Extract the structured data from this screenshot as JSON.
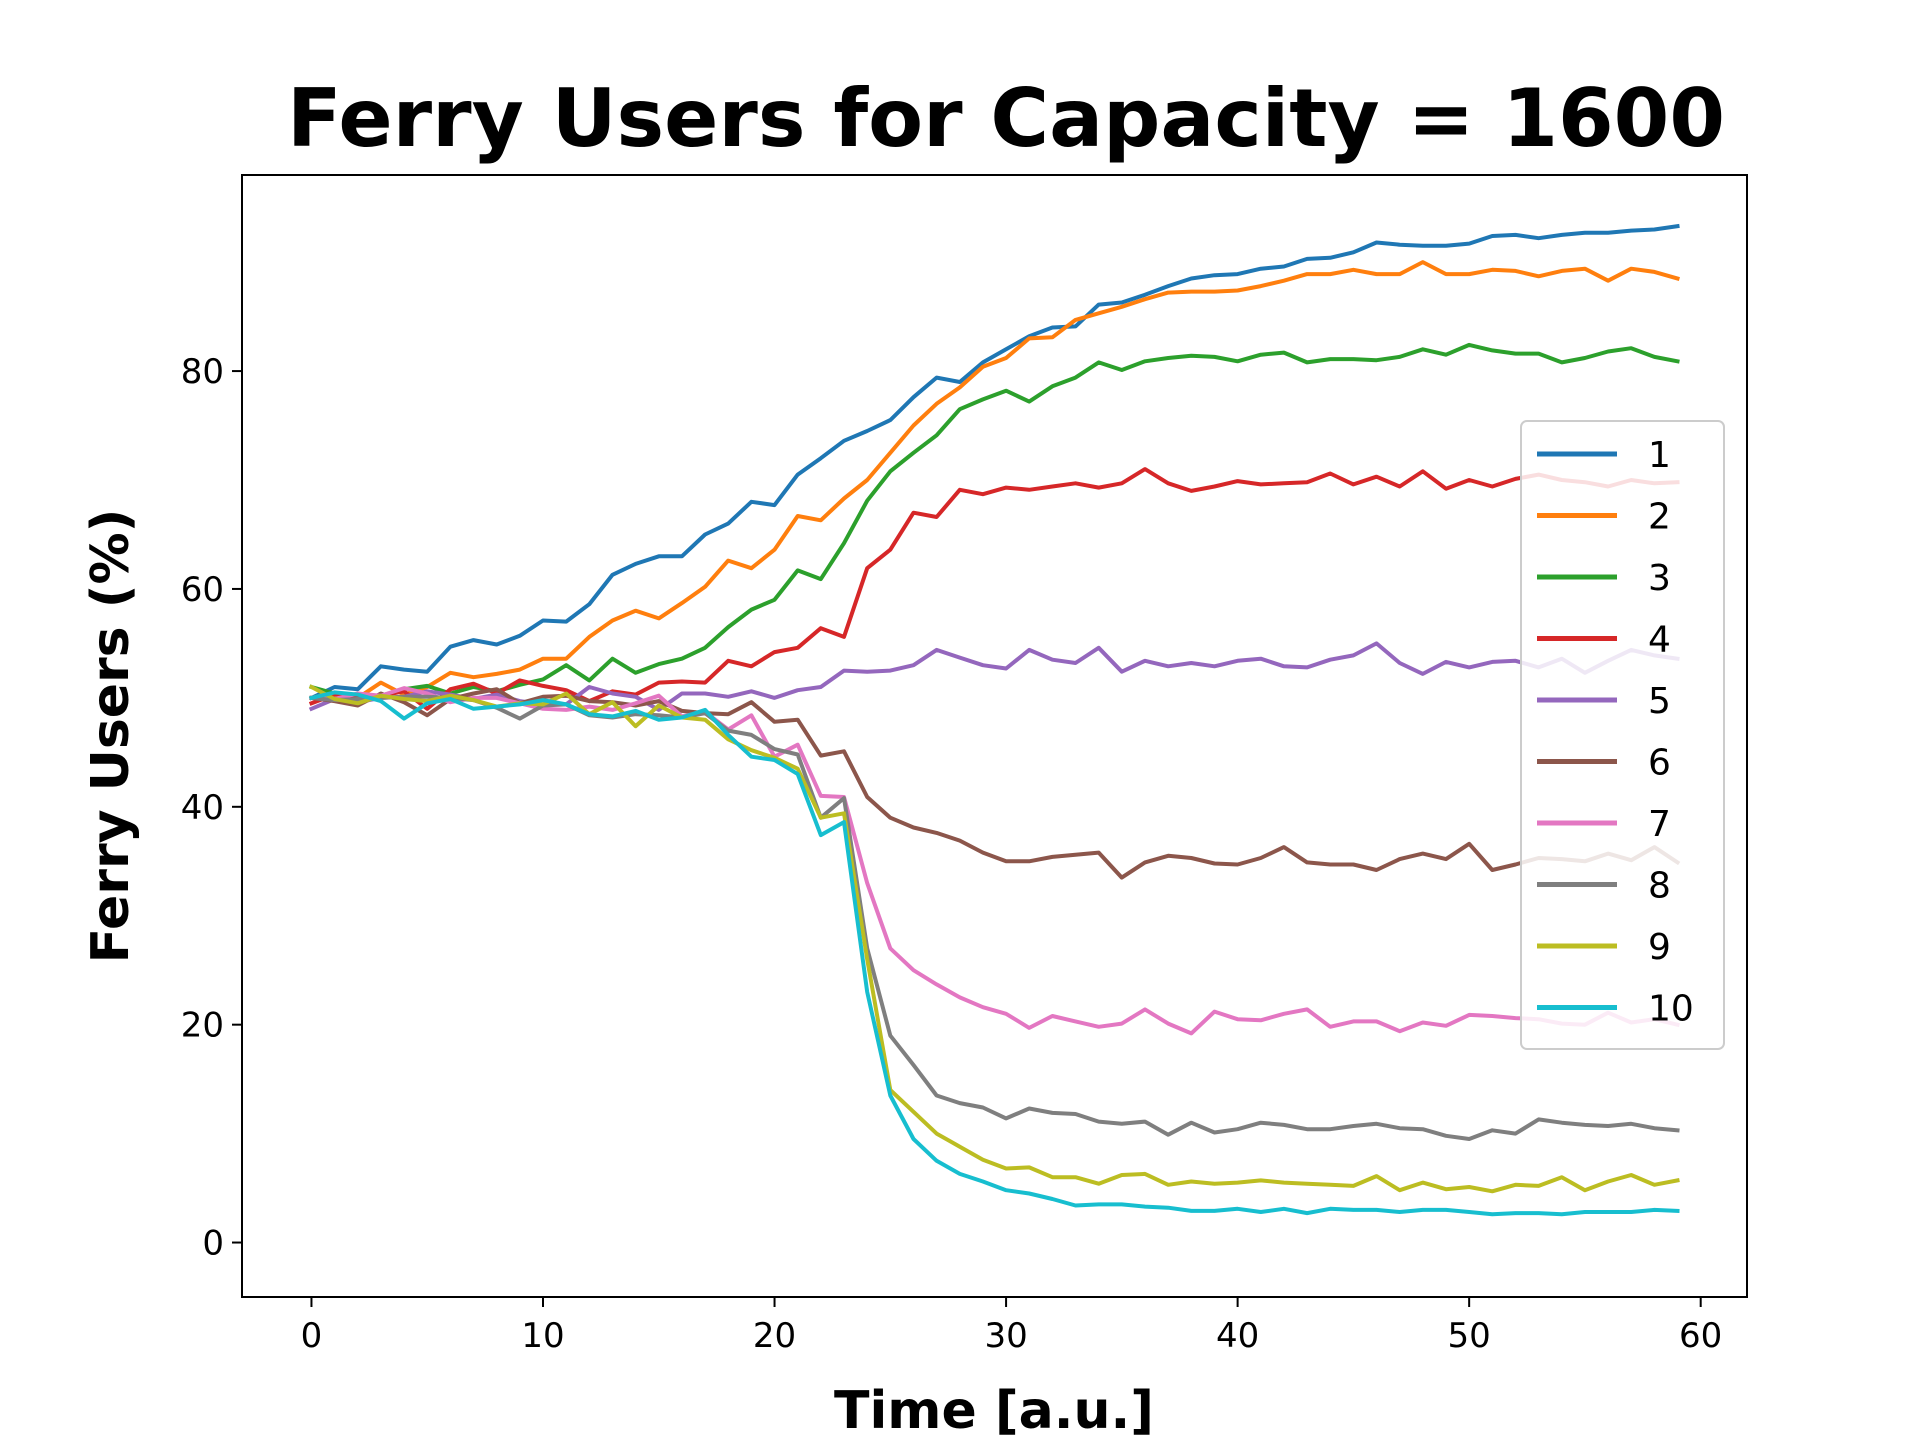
{
  "chart_data": {
    "type": "line",
    "title": "Ferry Users for Capacity = 1600",
    "xlabel": "Time [a.u.]",
    "ylabel": "Ferry Users (%)",
    "xlim": [
      -3,
      62
    ],
    "ylim": [
      -5,
      98
    ],
    "xticks": [
      0,
      10,
      20,
      30,
      40,
      50,
      60
    ],
    "yticks": [
      0,
      20,
      40,
      60,
      80
    ],
    "grid": false,
    "legend_position": "center-right",
    "series_start_x": 0,
    "series_step": 1,
    "series": [
      {
        "name": "1",
        "color": "#1f77b4",
        "values": [
          50.0,
          51.0,
          50.8,
          52.9,
          52.6,
          52.4,
          54.7,
          55.3,
          54.9,
          55.7,
          57.1,
          57.0,
          58.6,
          61.3,
          62.3,
          63.0,
          63.0,
          65.0,
          66.0,
          68.0,
          67.7,
          70.5,
          72.0,
          73.6,
          74.5,
          75.5,
          77.6,
          79.4,
          79.0,
          80.8,
          82.0,
          83.2,
          84.0,
          84.1,
          86.1,
          86.3,
          87.0,
          87.8,
          88.5,
          88.8,
          88.9,
          89.4,
          89.6,
          90.3,
          90.4,
          90.9,
          91.8,
          91.6,
          91.5,
          91.5,
          91.7,
          92.4,
          92.5,
          92.2,
          92.5,
          92.7,
          92.7,
          92.9,
          93.0,
          93.3
        ]
      },
      {
        "name": "2",
        "color": "#ff7f0e",
        "values": [
          50.0,
          50.5,
          50.0,
          51.4,
          50.3,
          51.0,
          52.3,
          51.9,
          52.2,
          52.6,
          53.6,
          53.6,
          55.6,
          57.1,
          58.0,
          57.3,
          58.7,
          60.2,
          62.6,
          61.9,
          63.6,
          66.7,
          66.3,
          68.3,
          70.0,
          72.5,
          75.0,
          77.0,
          78.5,
          80.4,
          81.2,
          83.0,
          83.1,
          84.7,
          85.3,
          85.9,
          86.6,
          87.2,
          87.3,
          87.3,
          87.4,
          87.8,
          88.3,
          88.9,
          88.9,
          89.3,
          88.9,
          88.9,
          90.0,
          88.9,
          88.9,
          89.3,
          89.2,
          88.7,
          89.2,
          89.4,
          88.3,
          89.4,
          89.1,
          88.5
        ]
      },
      {
        "name": "3",
        "color": "#2ca02c",
        "values": [
          51.0,
          50.4,
          50.0,
          50.2,
          50.8,
          51.1,
          50.4,
          51.0,
          50.6,
          51.2,
          51.7,
          53.0,
          51.6,
          53.6,
          52.3,
          53.1,
          53.6,
          54.6,
          56.5,
          58.1,
          59.0,
          61.7,
          60.9,
          64.2,
          68.1,
          70.8,
          72.5,
          74.1,
          76.5,
          77.4,
          78.2,
          77.2,
          78.6,
          79.4,
          80.8,
          80.1,
          80.9,
          81.2,
          81.4,
          81.3,
          80.9,
          81.5,
          81.7,
          80.8,
          81.1,
          81.1,
          81.0,
          81.3,
          82.0,
          81.5,
          82.4,
          81.9,
          81.6,
          81.6,
          80.8,
          81.2,
          81.8,
          82.1,
          81.3,
          80.9
        ]
      },
      {
        "name": "4",
        "color": "#d62728",
        "values": [
          49.5,
          50.3,
          50.0,
          50.2,
          50.6,
          49.0,
          50.8,
          51.3,
          50.4,
          51.6,
          51.1,
          50.7,
          49.7,
          50.6,
          50.3,
          51.4,
          51.5,
          51.4,
          53.4,
          52.9,
          54.2,
          54.6,
          56.4,
          55.6,
          61.9,
          63.6,
          67.0,
          66.6,
          69.1,
          68.7,
          69.3,
          69.1,
          69.4,
          69.7,
          69.3,
          69.7,
          71.0,
          69.7,
          69.0,
          69.4,
          69.9,
          69.6,
          69.7,
          69.8,
          70.6,
          69.6,
          70.3,
          69.4,
          70.8,
          69.2,
          70.0,
          69.4,
          70.1,
          70.5,
          70.0,
          69.8,
          69.4,
          70.0,
          69.7,
          69.8
        ]
      },
      {
        "name": "5",
        "color": "#9467bd",
        "values": [
          49.0,
          49.9,
          49.6,
          50.0,
          50.1,
          50.6,
          50.3,
          49.9,
          50.3,
          49.7,
          49.4,
          49.4,
          51.0,
          50.4,
          50.1,
          48.9,
          50.4,
          50.4,
          50.1,
          50.6,
          50.0,
          50.7,
          51.0,
          52.5,
          52.4,
          52.5,
          53.0,
          54.4,
          53.7,
          53.0,
          52.7,
          54.4,
          53.5,
          53.2,
          54.6,
          52.4,
          53.4,
          52.9,
          53.2,
          52.9,
          53.4,
          53.6,
          52.9,
          52.8,
          53.5,
          53.9,
          55.0,
          53.2,
          52.2,
          53.3,
          52.8,
          53.3,
          53.4,
          52.8,
          53.6,
          52.3,
          53.4,
          54.4,
          53.9,
          53.6
        ]
      },
      {
        "name": "6",
        "color": "#8c564b",
        "values": [
          50.0,
          49.7,
          49.3,
          50.4,
          49.6,
          48.4,
          49.9,
          50.4,
          50.8,
          49.5,
          50.1,
          50.2,
          49.7,
          49.6,
          49.3,
          49.7,
          48.8,
          48.6,
          48.5,
          49.6,
          47.8,
          48.0,
          44.7,
          45.1,
          40.9,
          39.0,
          38.1,
          37.6,
          36.9,
          35.8,
          35.0,
          35.0,
          35.4,
          35.6,
          35.8,
          33.5,
          34.9,
          35.5,
          35.3,
          34.8,
          34.7,
          35.3,
          36.3,
          34.9,
          34.7,
          34.7,
          34.2,
          35.2,
          35.7,
          35.2,
          36.6,
          34.2,
          34.7,
          35.3,
          35.2,
          35.0,
          35.7,
          35.1,
          36.3,
          34.9
        ]
      },
      {
        "name": "7",
        "color": "#e377c2",
        "values": [
          50.0,
          49.9,
          50.4,
          50.2,
          50.9,
          50.4,
          49.6,
          50.0,
          50.0,
          49.5,
          49.0,
          48.9,
          49.2,
          48.9,
          49.5,
          50.2,
          48.3,
          48.7,
          47.1,
          48.4,
          44.6,
          45.7,
          41.0,
          40.9,
          33.0,
          27.0,
          25.0,
          23.7,
          22.5,
          21.6,
          21.0,
          19.7,
          20.8,
          20.3,
          19.8,
          20.1,
          21.4,
          20.1,
          19.2,
          21.2,
          20.5,
          20.4,
          21.0,
          21.4,
          19.8,
          20.3,
          20.3,
          19.4,
          20.2,
          19.9,
          20.9,
          20.8,
          20.6,
          20.5,
          20.1,
          20.0,
          21.1,
          20.2,
          20.5,
          20.0
        ]
      },
      {
        "name": "8",
        "color": "#7f7f7f",
        "values": [
          50.0,
          49.8,
          49.9,
          50.0,
          50.1,
          50.1,
          50.0,
          49.8,
          49.1,
          48.1,
          49.3,
          49.4,
          48.4,
          48.2,
          48.5,
          48.4,
          48.2,
          48.6,
          47.0,
          46.6,
          45.3,
          44.8,
          39.0,
          40.8,
          27.0,
          19.0,
          16.3,
          13.5,
          12.8,
          12.4,
          11.4,
          12.3,
          11.9,
          11.8,
          11.1,
          10.9,
          11.1,
          9.9,
          11.0,
          10.1,
          10.4,
          11.0,
          10.8,
          10.4,
          10.4,
          10.7,
          10.9,
          10.5,
          10.4,
          9.8,
          9.5,
          10.3,
          10.0,
          11.3,
          11.0,
          10.8,
          10.7,
          10.9,
          10.5,
          10.3
        ]
      },
      {
        "name": "9",
        "color": "#bcbd22",
        "values": [
          51.0,
          49.9,
          49.5,
          50.2,
          49.9,
          49.7,
          50.2,
          49.8,
          49.2,
          49.5,
          49.4,
          50.4,
          48.5,
          49.6,
          47.4,
          49.3,
          48.2,
          48.0,
          46.2,
          45.2,
          44.5,
          43.5,
          39.0,
          39.4,
          26.0,
          14.0,
          12.0,
          10.0,
          8.8,
          7.6,
          6.8,
          6.9,
          6.0,
          6.0,
          5.4,
          6.2,
          6.3,
          5.3,
          5.6,
          5.4,
          5.5,
          5.7,
          5.5,
          5.4,
          5.3,
          5.2,
          6.1,
          4.8,
          5.5,
          4.9,
          5.1,
          4.7,
          5.3,
          5.2,
          6.0,
          4.8,
          5.6,
          6.2,
          5.3,
          5.7
        ]
      },
      {
        "name": "10",
        "color": "#17becf",
        "values": [
          50.0,
          50.5,
          50.3,
          49.7,
          48.1,
          49.5,
          49.9,
          49.0,
          49.2,
          49.4,
          49.8,
          49.4,
          48.5,
          48.3,
          48.8,
          48.0,
          48.2,
          48.9,
          46.6,
          44.6,
          44.3,
          43.0,
          37.4,
          38.6,
          23.0,
          13.5,
          9.5,
          7.5,
          6.3,
          5.6,
          4.8,
          4.5,
          4.0,
          3.4,
          3.5,
          3.5,
          3.3,
          3.2,
          2.9,
          2.9,
          3.1,
          2.8,
          3.1,
          2.7,
          3.1,
          3.0,
          3.0,
          2.8,
          3.0,
          3.0,
          2.8,
          2.6,
          2.7,
          2.7,
          2.6,
          2.8,
          2.8,
          2.8,
          3.0,
          2.9
        ]
      }
    ]
  }
}
